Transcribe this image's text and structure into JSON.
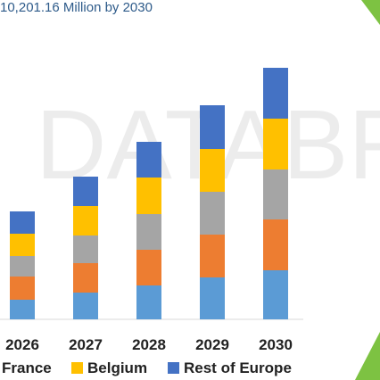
{
  "title": "10,201.16 Million by 2030",
  "chart_data": {
    "type": "bar",
    "stacked": true,
    "title": "10,201.16 Million by 2030",
    "xlabel": "",
    "ylabel": "",
    "ylim": [
      0,
      300
    ],
    "grid": false,
    "legend_position": "bottom",
    "categories": [
      "2026",
      "2027",
      "2028",
      "2029",
      "2030"
    ],
    "series": [
      {
        "name": "",
        "color": "#5b9bd5",
        "values": [
          22,
          30,
          38,
          47,
          55
        ]
      },
      {
        "name": "",
        "color": "#ed7d31",
        "values": [
          26,
          33,
          40,
          48,
          57
        ]
      },
      {
        "name": "",
        "color": "#a5a5a5",
        "values": [
          23,
          31,
          40,
          48,
          56
        ]
      },
      {
        "name": "",
        "color": "#ffc000",
        "values": [
          25,
          33,
          41,
          48,
          57
        ]
      },
      {
        "name": "",
        "color": "#4472c4",
        "values": [
          25,
          33,
          40,
          49,
          57
        ]
      }
    ],
    "legend": [
      {
        "label": "France",
        "color": "",
        "partial": true
      },
      {
        "label": "Belgium",
        "color": "#ffc000"
      },
      {
        "label": "Rest of Europe",
        "color": "#4472c4"
      }
    ]
  }
}
